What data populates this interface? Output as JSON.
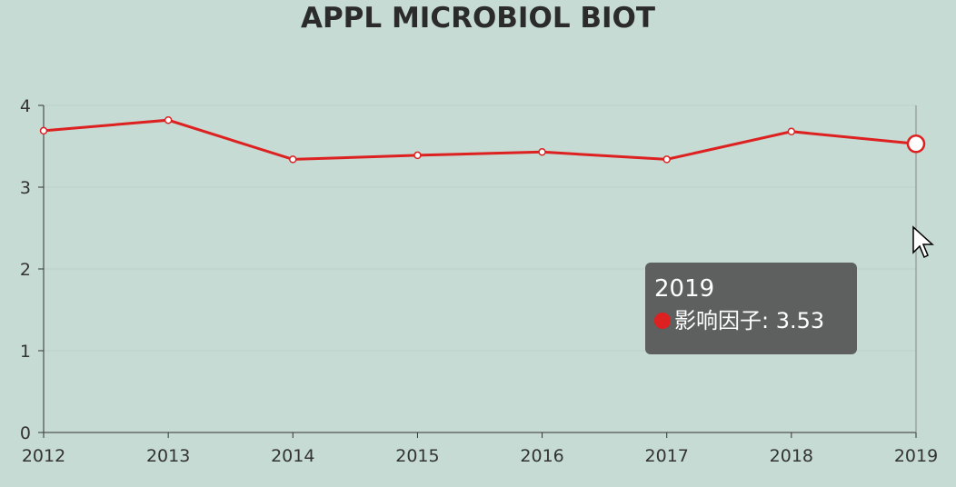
{
  "chart_data": {
    "type": "line",
    "title": "APPL MICROBIOL BIOT",
    "categories": [
      "2012",
      "2013",
      "2014",
      "2015",
      "2016",
      "2017",
      "2018",
      "2019"
    ],
    "series": [
      {
        "name": "影响因子",
        "values": [
          3.69,
          3.82,
          3.34,
          3.39,
          3.43,
          3.34,
          3.68,
          3.53
        ]
      }
    ],
    "ylim": [
      0,
      4
    ],
    "yticks": [
      "0",
      "1",
      "2",
      "3",
      "4"
    ],
    "xlabel": "",
    "ylabel": "",
    "grid": true,
    "line_color": "#dd2020"
  },
  "tooltip": {
    "title": "2019",
    "label": "影响因子: 3.53",
    "marker_color": "#dd2020"
  }
}
